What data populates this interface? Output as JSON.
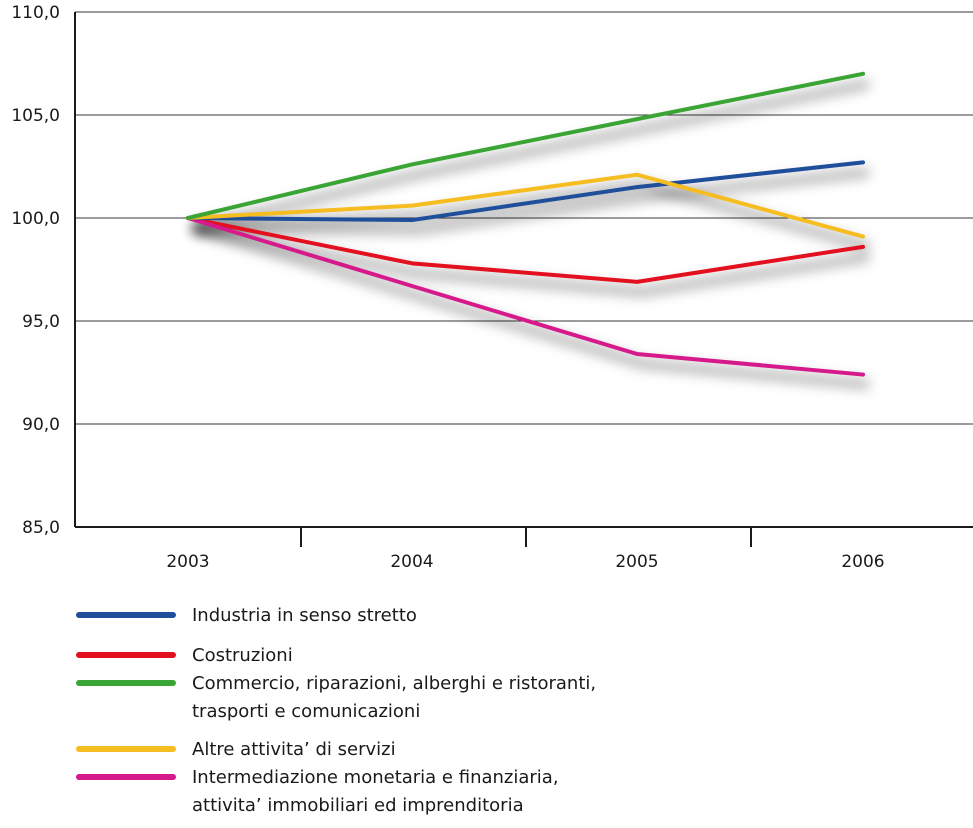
{
  "chart_data": {
    "type": "line",
    "title": "",
    "xlabel": "",
    "ylabel": "",
    "categories": [
      "2003",
      "2004",
      "2005",
      "2006"
    ],
    "ylim": [
      85,
      110
    ],
    "yticks": [
      85,
      90,
      95,
      100,
      105,
      110
    ],
    "ytick_labels": [
      "85,0",
      "90,0",
      "95,0",
      "100,0",
      "105,0",
      "110,0"
    ],
    "grid": "horizontal",
    "legend_position": "bottom-left",
    "series": [
      {
        "name": "Industria in senso stretto",
        "color": "#1f4e9a",
        "values": [
          100.0,
          99.9,
          101.5,
          102.7
        ]
      },
      {
        "name": "Costruzioni",
        "color": "#e3101f",
        "values": [
          100.0,
          97.8,
          96.9,
          98.6
        ]
      },
      {
        "name": "Commercio, riparazioni, alberghi e ristoranti,\ntrasporti e comunicazioni",
        "color": "#3aa534",
        "values": [
          100.0,
          102.6,
          104.8,
          107.0
        ]
      },
      {
        "name": "Altre attivita’ di servizi",
        "color": "#f5bd1f",
        "values": [
          100.0,
          100.6,
          102.1,
          99.1
        ]
      },
      {
        "name": "Intermediazione monetaria e finanziaria,\nattivita’ immobiliari ed imprenditoria",
        "color": "#d61a8c",
        "values": [
          100.0,
          96.7,
          93.4,
          92.4
        ]
      }
    ]
  }
}
